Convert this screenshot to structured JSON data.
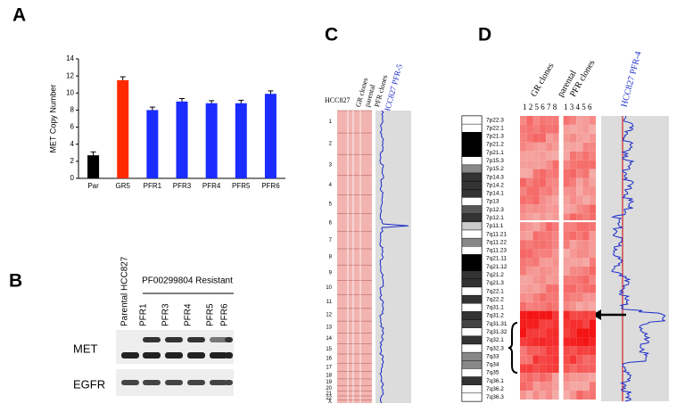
{
  "panels": {
    "a": "A",
    "b": "B",
    "c": "C",
    "d": "D"
  },
  "chart_data": {
    "type": "bar",
    "y_label": "MET Copy Number",
    "categories": [
      "Par",
      "GR5",
      "PFR1",
      "PFR3",
      "PFR4",
      "PFR5",
      "PFR6"
    ],
    "values": [
      2.7,
      11.5,
      8.0,
      9.0,
      8.8,
      8.8,
      9.9
    ],
    "errors": [
      0.4,
      0.4,
      0.35,
      0.35,
      0.3,
      0.35,
      0.35
    ],
    "colors": [
      "#000000",
      "#ff2a00",
      "#1a2cff",
      "#1a2cff",
      "#1a2cff",
      "#1a2cff",
      "#1a2cff"
    ],
    "ylim": [
      0,
      14
    ],
    "yticks": [
      0,
      2,
      4,
      6,
      8,
      10,
      12,
      14
    ]
  },
  "blot": {
    "parental": "Parental HCC827",
    "group": "PF00299804 Resistant",
    "lanes": [
      "PFR1",
      "PFR3",
      "PFR4",
      "PFR5",
      "PFR6"
    ],
    "rows": [
      "MET",
      "EGFR"
    ]
  },
  "cnv_c": {
    "sample": "HCC827",
    "groups": [
      "GR clones",
      "parental",
      "PFR clones"
    ],
    "profile": "HCC827 PFR-5",
    "chromosomes": [
      "1",
      "2",
      "3",
      "4",
      "5",
      "6",
      "7",
      "8",
      "9",
      "10",
      "11",
      "12",
      "13",
      "14",
      "15",
      "16",
      "17",
      "18",
      "19",
      "20",
      "21",
      "22",
      "X"
    ]
  },
  "cnv_d": {
    "groups": [
      "GR clones",
      "parental",
      "PFR clones"
    ],
    "gr_clones": "1 2 5 6 7 8",
    "pfr_clones": "1 3 4 5 6",
    "profile": "HCC827 PFR-4",
    "bands": [
      "7p22.3",
      "7p22.1",
      "7p21.3",
      "7p21.2",
      "7p21.1",
      "7p15.3",
      "7p15.2",
      "7p14.3",
      "7p14.2",
      "7p14.1",
      "7p13",
      "7p12.3",
      "7p12.1",
      "7p11.1",
      "7q11.21",
      "7q11.22",
      "7q11.23",
      "7q21.11",
      "7q21.12",
      "7q21.2",
      "7q21.3",
      "7q22.1",
      "7q22.2",
      "7q31.1",
      "7q31.2",
      "7q31.31",
      "7q31.32",
      "7q32.1",
      "7q32.3",
      "7q33",
      "7q34",
      "7q35",
      "7q36.1",
      "7q36.2",
      "7q36.3"
    ]
  }
}
